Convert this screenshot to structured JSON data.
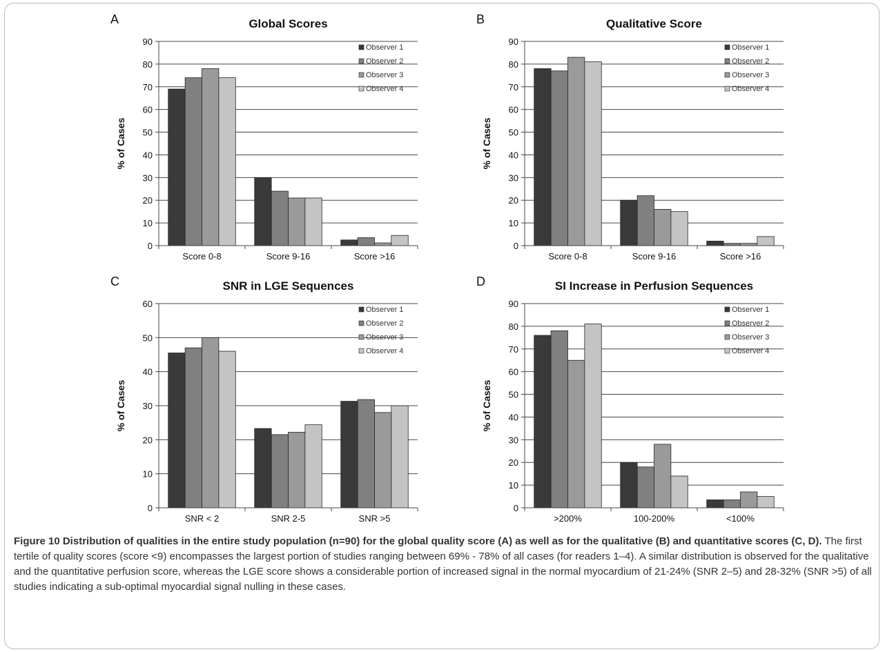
{
  "figure": {
    "caption_title": "Figure 10 Distribution of qualities in the entire study population (n=90) for the global quality score (A) as well as for the qualitative (B) and quantitative scores (C, D).",
    "caption_text": "The first tertile of quality scores (score <9) encompasses the largest portion of studies ranging between 69% - 78% of all cases (for readers 1–4). A similar distribution is observed for the qualitative and the quantitative perfusion score, whereas the LGE score shows a considerable portion of increased signal in the normal myocardium of 21-24% (SNR 2–5) and 28-32% (SNR >5) of all studies indicating a sub-optimal myocardial signal nulling in these cases."
  },
  "colors": {
    "observer_1": "#3a3a3a",
    "observer_2": "#808080",
    "observer_3": "#9a9a9a",
    "observer_4": "#c4c4c4",
    "gridline": "#444444",
    "axis": "#444444"
  },
  "chart_data": [
    {
      "type": "bar",
      "panel_label": "A",
      "title": "Global Scores",
      "ylabel": "% of Cases",
      "xlabel": "",
      "ylim": [
        0,
        90
      ],
      "yticks": [
        0,
        10,
        20,
        30,
        40,
        50,
        60,
        70,
        80,
        90
      ],
      "grid": true,
      "legend_position": "top-right",
      "categories": [
        "Score 0-8",
        "Score 9-16",
        "Score >16"
      ],
      "series": [
        {
          "name": "Observer 1",
          "values": [
            69,
            30,
            2.5
          ]
        },
        {
          "name": "Observer 2",
          "values": [
            74,
            24,
            3.5
          ]
        },
        {
          "name": "Observer 3",
          "values": [
            78,
            21,
            1.2
          ]
        },
        {
          "name": "Observer 4",
          "values": [
            74,
            21,
            4.5
          ]
        }
      ]
    },
    {
      "type": "bar",
      "panel_label": "B",
      "title": "Qualitative Score",
      "ylabel": "% of Cases",
      "xlabel": "",
      "ylim": [
        0,
        90
      ],
      "yticks": [
        0,
        10,
        20,
        30,
        40,
        50,
        60,
        70,
        80,
        90
      ],
      "grid": true,
      "legend_position": "top-right",
      "categories": [
        "Score 0-8",
        "Score 9-16",
        "Score >16"
      ],
      "series": [
        {
          "name": "Observer 1",
          "values": [
            78,
            20,
            2
          ]
        },
        {
          "name": "Observer 2",
          "values": [
            77,
            22,
            1
          ]
        },
        {
          "name": "Observer 3",
          "values": [
            83,
            16,
            1
          ]
        },
        {
          "name": "Observer 4",
          "values": [
            81,
            15,
            4
          ]
        }
      ]
    },
    {
      "type": "bar",
      "panel_label": "C",
      "title": "SNR in LGE Sequences",
      "ylabel": "% of Cases",
      "xlabel": "",
      "ylim": [
        0,
        60
      ],
      "yticks": [
        0,
        10,
        20,
        30,
        40,
        50,
        60
      ],
      "grid": true,
      "legend_position": "top-right",
      "categories": [
        "SNR < 2",
        "SNR 2-5",
        "SNR >5"
      ],
      "series": [
        {
          "name": "Observer 1",
          "values": [
            45.5,
            23.3,
            31.3
          ]
        },
        {
          "name": "Observer 2",
          "values": [
            47,
            21.5,
            31.8
          ]
        },
        {
          "name": "Observer 3",
          "values": [
            50,
            22.2,
            28
          ]
        },
        {
          "name": "Observer 4",
          "values": [
            46,
            24.4,
            30
          ]
        }
      ]
    },
    {
      "type": "bar",
      "panel_label": "D",
      "title": "SI Increase in Perfusion Sequences",
      "ylabel": "% of Cases",
      "xlabel": "",
      "ylim": [
        0,
        90
      ],
      "yticks": [
        0,
        10,
        20,
        30,
        40,
        50,
        60,
        70,
        80,
        90
      ],
      "grid": true,
      "legend_position": "top-right",
      "categories": [
        ">200%",
        "100-200%",
        "<100%"
      ],
      "series": [
        {
          "name": "Observer 1",
          "values": [
            76,
            20,
            3.5
          ]
        },
        {
          "name": "Observer 2",
          "values": [
            78,
            18,
            3.5
          ]
        },
        {
          "name": "Observer 3",
          "values": [
            65,
            28,
            7
          ]
        },
        {
          "name": "Observer 4",
          "values": [
            81,
            14,
            5
          ]
        }
      ]
    }
  ]
}
